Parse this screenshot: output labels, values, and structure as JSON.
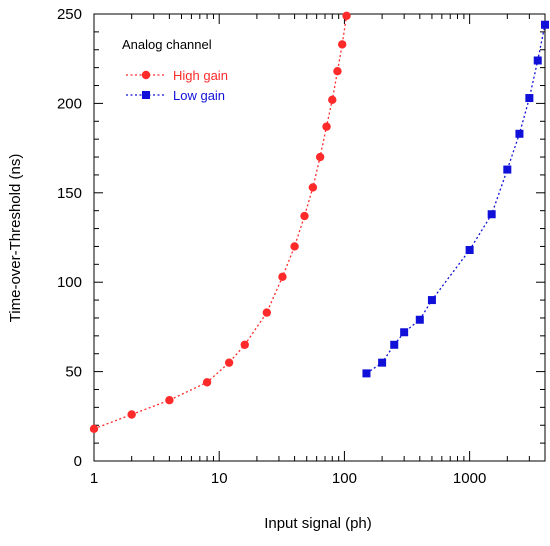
{
  "chart_data": {
    "type": "scatter",
    "title": "",
    "xlabel": "Input signal (ph)",
    "ylabel": "Time-over-Threshold (ns)",
    "xscale": "log",
    "xlim": [
      1,
      4000
    ],
    "ylim": [
      0,
      250
    ],
    "x_major_ticks": [
      1,
      10,
      100,
      1000
    ],
    "x_tick_labels": [
      "1",
      "10",
      "100",
      "1000"
    ],
    "y_ticks": [
      0,
      50,
      100,
      150,
      200,
      250
    ],
    "y_tick_labels": [
      "0",
      "50",
      "100",
      "150",
      "200",
      "250"
    ],
    "grid": false,
    "legend": {
      "title": "Analog channel",
      "placement": "top-left"
    },
    "series": [
      {
        "name": "High gain",
        "color": "#ff2a2a",
        "marker": "circle",
        "line": "dotted",
        "x": [
          1,
          2,
          4,
          8,
          12,
          16,
          24,
          32,
          40,
          48,
          56,
          64,
          72,
          80,
          88,
          96,
          104
        ],
        "y": [
          18,
          26,
          34,
          44,
          55,
          65,
          83,
          103,
          120,
          137,
          153,
          170,
          187,
          202,
          218,
          233,
          249
        ]
      },
      {
        "name": "Low gain",
        "color": "#1010d8",
        "marker": "square",
        "line": "dotted",
        "x": [
          150,
          200,
          250,
          300,
          400,
          500,
          1000,
          1500,
          2000,
          2500,
          3000,
          3500,
          4000
        ],
        "y": [
          49,
          55,
          65,
          72,
          79,
          90,
          118,
          138,
          163,
          183,
          203,
          224,
          244
        ]
      }
    ]
  }
}
